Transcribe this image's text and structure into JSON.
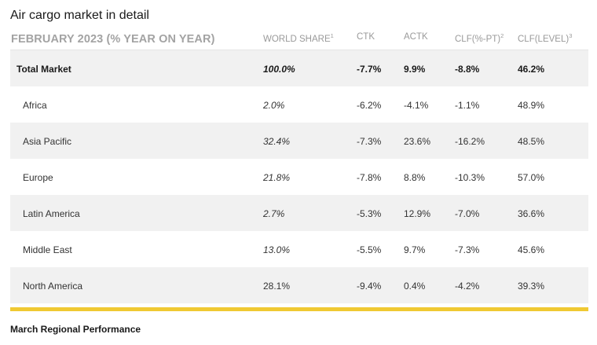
{
  "title": "Air cargo market in detail",
  "table": {
    "period_label": "FEBRUARY 2023 (% YEAR ON YEAR)",
    "columns": [
      {
        "label": "WORLD SHARE",
        "sup": "1"
      },
      {
        "label": "CTK",
        "sup": ""
      },
      {
        "label": "ACTK",
        "sup": ""
      },
      {
        "label": "CLF(%-PT)",
        "sup": "2"
      },
      {
        "label": "CLF(LEVEL)",
        "sup": "3"
      }
    ],
    "rows": [
      {
        "region": "Total Market",
        "share": "100.0%",
        "ctk": "-7.7%",
        "actk": "9.9%",
        "clf_pt": "-8.8%",
        "clf_level": "46.2%"
      },
      {
        "region": "Africa",
        "share": "2.0%",
        "ctk": "-6.2%",
        "actk": "-4.1%",
        "clf_pt": "-1.1%",
        "clf_level": "48.9%"
      },
      {
        "region": "Asia Pacific",
        "share": "32.4%",
        "ctk": "-7.3%",
        "actk": "23.6%",
        "clf_pt": "-16.2%",
        "clf_level": "48.5%"
      },
      {
        "region": "Europe",
        "share": "21.8%",
        "ctk": "-7.8%",
        "actk": "8.8%",
        "clf_pt": "-10.3%",
        "clf_level": "57.0%"
      },
      {
        "region": "Latin America",
        "share": "2.7%",
        "ctk": "-5.3%",
        "actk": "12.9%",
        "clf_pt": "-7.0%",
        "clf_level": "36.6%"
      },
      {
        "region": "Middle East",
        "share": "13.0%",
        "ctk": "-5.5%",
        "actk": "9.7%",
        "clf_pt": "-7.3%",
        "clf_level": "45.6%"
      },
      {
        "region": "North America",
        "share": "28.1%",
        "ctk": "-9.4%",
        "actk": "0.4%",
        "clf_pt": "-4.2%",
        "clf_level": "39.3%"
      }
    ]
  },
  "footer": "March Regional Performance",
  "colors": {
    "accent": "#f0c932",
    "row_shade": "#f1f1f1",
    "header_text": "#9a9a9a"
  }
}
